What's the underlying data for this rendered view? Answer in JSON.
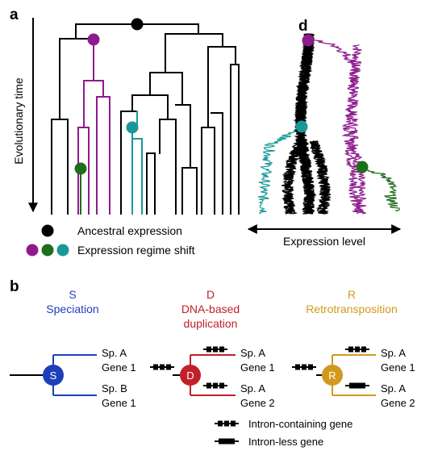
{
  "panel_a": {
    "label": "a",
    "axis_label": "Evolutionary time",
    "inset_label": "d",
    "expression_axis_label": "Expression level",
    "legend": {
      "ancestral": "Ancestral expression",
      "regime_shift": "Expression regime shift"
    }
  },
  "panel_b": {
    "label": "b",
    "modes": [
      {
        "letter": "S",
        "name": "Speciation",
        "color": "#1f3fb8"
      },
      {
        "letter": "D",
        "name_line1": "DNA-based",
        "name_line2": "duplication",
        "color": "#c0202a"
      },
      {
        "letter": "R",
        "name": "Retrotransposition",
        "color": "#d19a1c"
      }
    ],
    "speciation": {
      "top1": "Sp. A",
      "top2": "Gene 1",
      "bot1": "Sp. B",
      "bot2": "Gene 1"
    },
    "duplication": {
      "top1": "Sp. A",
      "top2": "Gene 1",
      "bot1": "Sp. A",
      "bot2": "Gene 2"
    },
    "retro": {
      "top1": "Sp. A",
      "top2": "Gene 1",
      "bot1": "Sp. A",
      "bot2": "Gene 2"
    },
    "gene_legend": {
      "intron": "Intron-containing gene",
      "intronless": "Intron-less gene"
    }
  },
  "colors": {
    "purple": "#8e1b8e",
    "green": "#1e6e1e",
    "teal": "#1a9898",
    "black": "#000000",
    "blue": "#1f3fb8",
    "red": "#c0202a",
    "gold": "#d19a1c"
  }
}
